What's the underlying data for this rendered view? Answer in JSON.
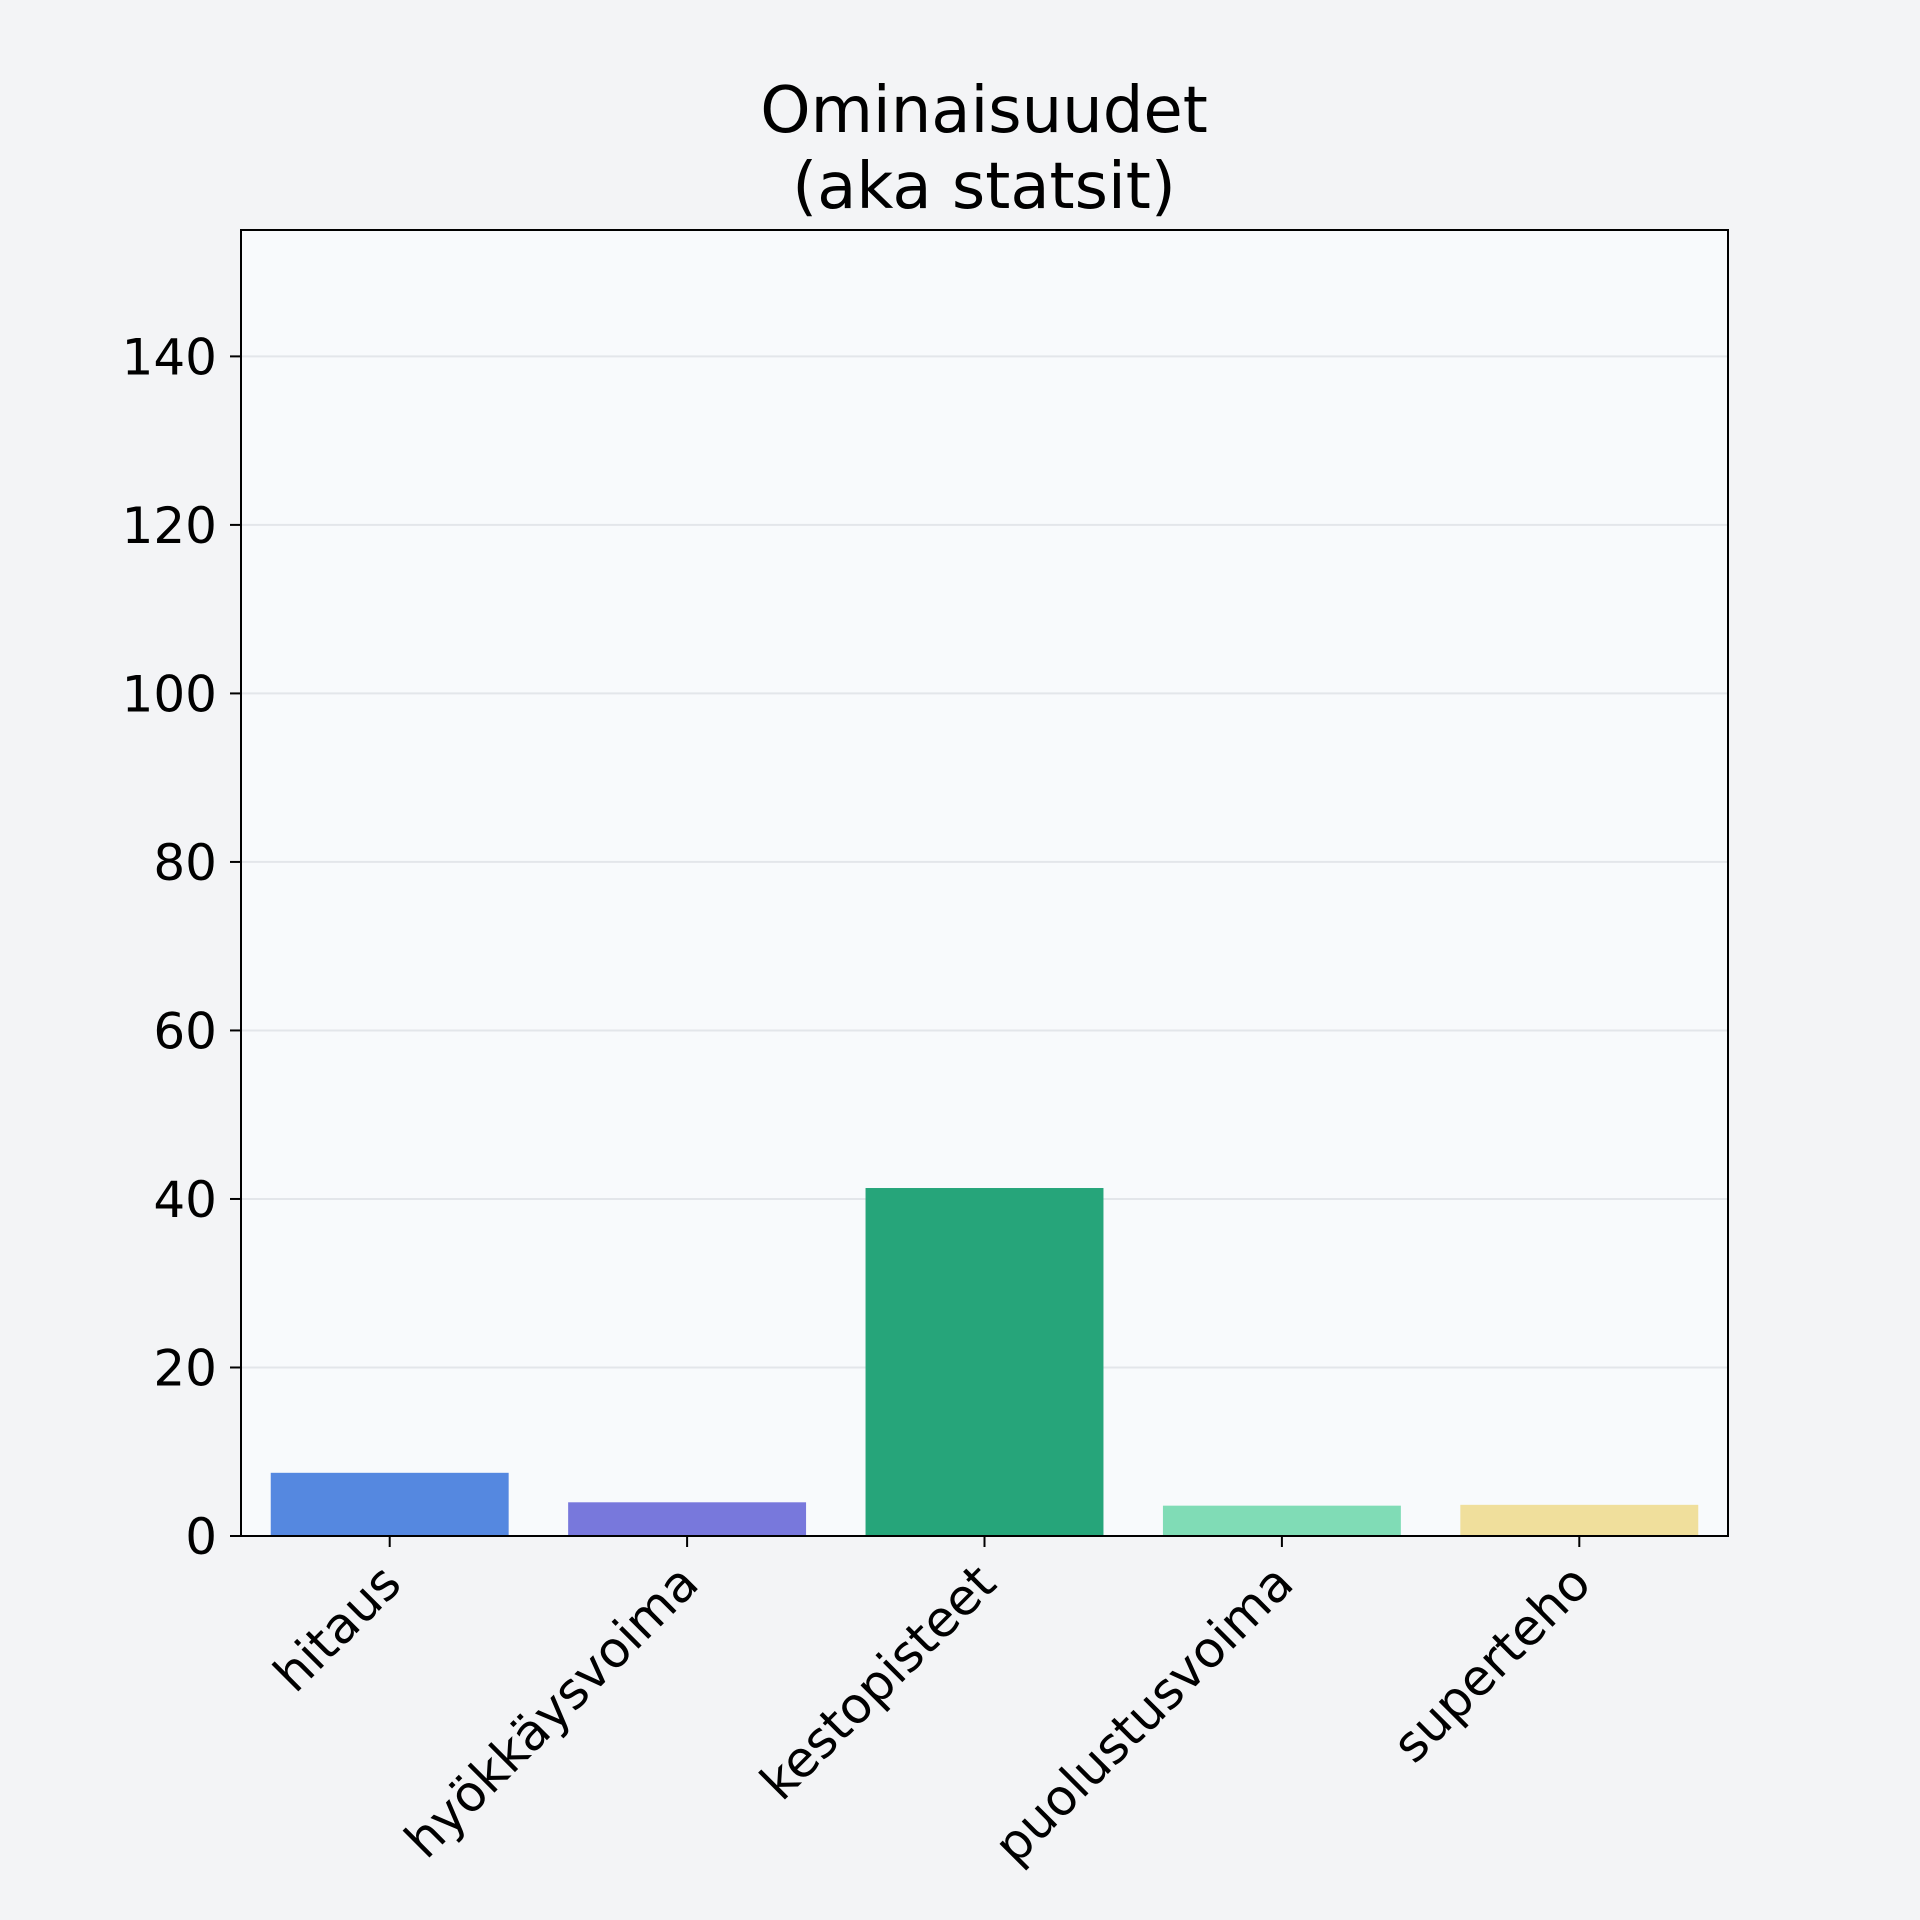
{
  "chart_data": {
    "type": "bar",
    "title_lines": [
      "Ominaisuudet",
      "(aka statsit)"
    ],
    "xlabel": "",
    "ylabel": "",
    "categories": [
      "hitaus",
      "hyökkäysvoima",
      "kestopisteet",
      "puolustusvoima",
      "superteho"
    ],
    "values": [
      7.5,
      4,
      41.3,
      3.6,
      3.7
    ],
    "colors": [
      "#5588e0",
      "#7878dc",
      "#26a57a",
      "#80dcb6",
      "#f0df9c"
    ],
    "ylim": [
      0,
      155
    ],
    "yticks": [
      0,
      20,
      40,
      60,
      80,
      100,
      120,
      140
    ],
    "grid": "horizontal",
    "plot_background": "#f8fafc",
    "page_background": "#f3f4f6"
  }
}
